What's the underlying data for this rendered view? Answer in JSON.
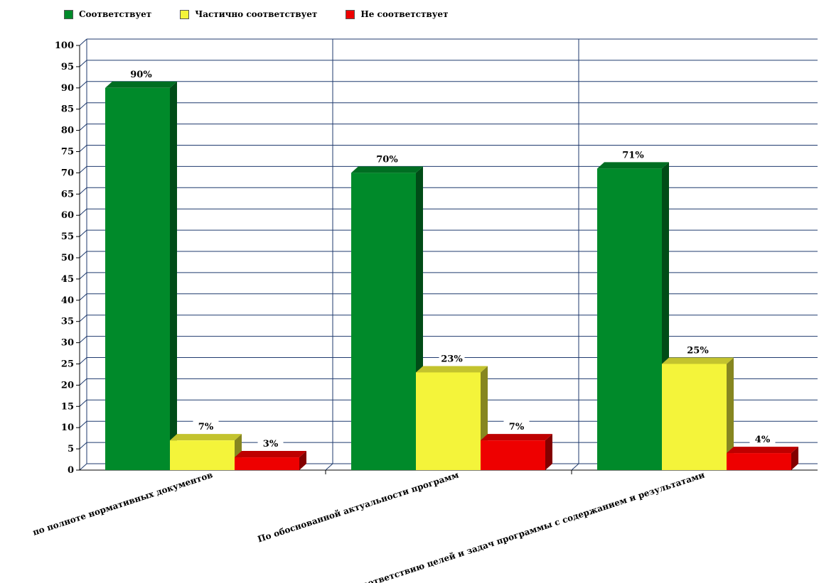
{
  "chart_data": {
    "type": "bar",
    "categories": [
      "по полноте нормативных документов",
      "По обоснованной актуальности программ",
      "соответствию целей и задач программы с содержанием и результатами"
    ],
    "series": [
      {
        "name": "Соответствует",
        "values": [
          90,
          70,
          71
        ],
        "color": "#008a2a"
      },
      {
        "name": "Частично соответствует",
        "values": [
          7,
          23,
          25
        ],
        "color": "#f4f43a"
      },
      {
        "name": "Не соответствует",
        "values": [
          3,
          7,
          4
        ],
        "color": "#ee0000"
      }
    ],
    "data_labels": [
      [
        "90%",
        "70%",
        "71%"
      ],
      [
        "7%",
        "23%",
        "25%"
      ],
      [
        "3%",
        "7%",
        "4%"
      ]
    ],
    "ylim": [
      0,
      100
    ],
    "yticks": [
      0,
      5,
      10,
      15,
      20,
      25,
      30,
      35,
      40,
      45,
      50,
      55,
      60,
      65,
      70,
      75,
      80,
      85,
      90,
      95,
      100
    ],
    "grid": true,
    "legend": "top-left",
    "title": "",
    "xlabel": "",
    "ylabel": ""
  }
}
